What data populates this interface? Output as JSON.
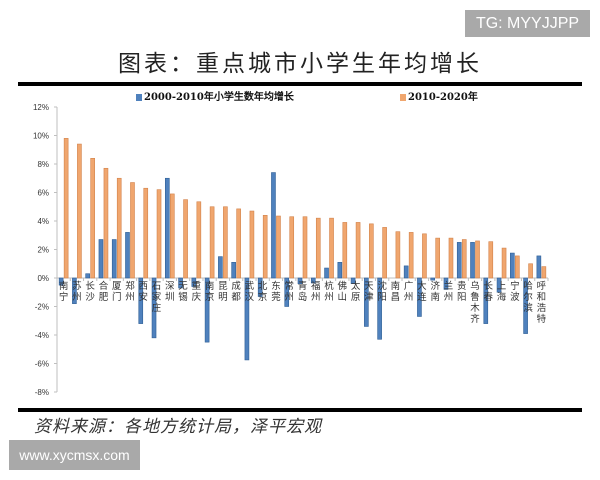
{
  "watermark_top": "TG: MYYJJPP",
  "watermark_bottom": "www.xycmsx.com",
  "title": "图表：重点城市小学生年均增长",
  "source": "资料来源：各地方统计局，泽平宏观",
  "legend": {
    "series1": "2000-2010年小学生数年均增长",
    "series2": "2010-2020年"
  },
  "colors": {
    "series1": "#4f81bd",
    "series2": "#f0a66e",
    "series1_edge": "#2f5f95",
    "series2_edge": "#d2824a",
    "axis": "#bfbfbf"
  },
  "chart_data": {
    "type": "bar",
    "title": "图表：重点城市小学生年均增长",
    "xlabel": "",
    "ylabel": "",
    "ylim": [
      -0.08,
      0.12
    ],
    "yticks": [
      "-8%",
      "-6%",
      "-4%",
      "-2%",
      "0%",
      "2%",
      "4%",
      "6%",
      "8%",
      "10%",
      "12%"
    ],
    "grid": false,
    "legend_position": "top",
    "categories": [
      "南宁",
      "苏州",
      "长沙",
      "合肥",
      "厦门",
      "郑州",
      "西安",
      "石家庄",
      "深圳",
      "无锡",
      "重庆",
      "南京",
      "昆明",
      "成都",
      "武汉",
      "北京",
      "东莞",
      "常州",
      "青岛",
      "福州",
      "杭州",
      "佛山",
      "太原",
      "天津",
      "沈阳",
      "南昌",
      "广州",
      "大连",
      "济南",
      "兰州",
      "贵阳",
      "乌鲁木齐",
      "长春",
      "上海",
      "宁波",
      "哈尔滨",
      "呼和浩特"
    ],
    "series": [
      {
        "name": "2000-2010年小学生数年均增长",
        "values": [
          -0.5,
          -1.8,
          0.3,
          2.7,
          2.7,
          3.2,
          -3.2,
          -4.2,
          7.0,
          -0.7,
          -0.6,
          -4.5,
          1.5,
          1.1,
          -5.75,
          -1.3,
          7.4,
          -2.0,
          -0.4,
          -0.35,
          0.7,
          1.1,
          -0.4,
          -3.4,
          -4.3,
          0.0,
          0.85,
          -2.7,
          -0.15,
          -0.8,
          2.5,
          2.5,
          -3.2,
          -1.0,
          1.75,
          -3.9,
          1.55
        ]
      },
      {
        "name": "2010-2020年",
        "values": [
          9.8,
          9.4,
          8.4,
          7.7,
          7.0,
          6.7,
          6.3,
          6.2,
          5.9,
          5.5,
          5.35,
          5.0,
          5.0,
          4.85,
          4.7,
          4.4,
          4.35,
          4.3,
          4.3,
          4.2,
          4.2,
          3.9,
          3.9,
          3.8,
          3.55,
          3.25,
          3.2,
          3.1,
          2.8,
          2.8,
          2.7,
          2.6,
          2.55,
          2.1,
          1.55,
          1.0,
          0.8
        ]
      }
    ],
    "unit": "%"
  }
}
